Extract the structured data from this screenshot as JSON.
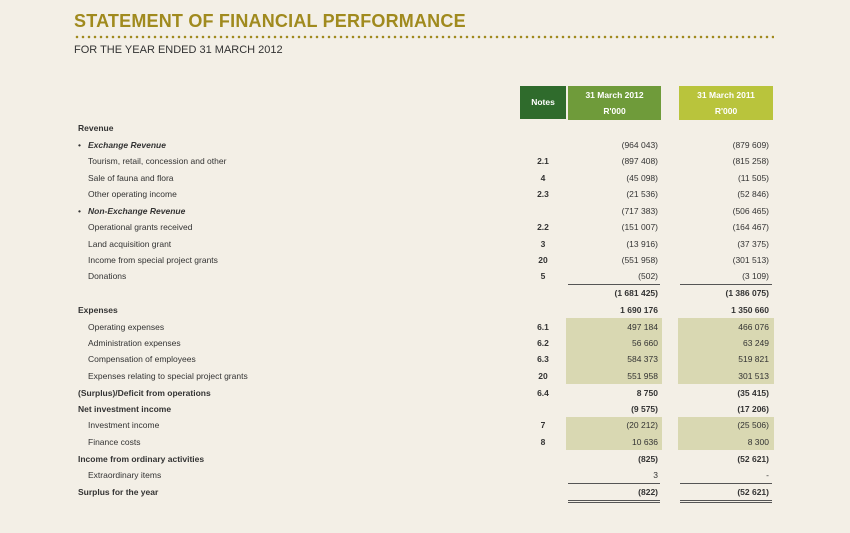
{
  "header": {
    "title": "STATEMENT OF FINANCIAL PERFORMANCE",
    "subtitle": "FOR THE YEAR ENDED 31 MARCH 2012"
  },
  "columns": {
    "notes": "Notes",
    "y2012_line1": "31 March 2012",
    "y2012_line2": "R'000",
    "y2011_line1": "31 March 2011",
    "y2011_line2": "R'000"
  },
  "rows": [
    {
      "label": "Revenue",
      "note": "",
      "v2012": "",
      "v2011": ""
    },
    {
      "label": "Exchange Revenue",
      "note": "",
      "v2012": "(964 043)",
      "v2011": "(879 609)"
    },
    {
      "label": "Tourism, retail, concession and other",
      "note": "2.1",
      "v2012": "(897 408)",
      "v2011": "(815 258)"
    },
    {
      "label": "Sale of fauna and flora",
      "note": "4",
      "v2012": "(45 098)",
      "v2011": "(11 505)"
    },
    {
      "label": "Other operating income",
      "note": "2.3",
      "v2012": "(21 536)",
      "v2011": "(52 846)"
    },
    {
      "label": "Non-Exchange Revenue",
      "note": "",
      "v2012": "(717 383)",
      "v2011": "(506 465)"
    },
    {
      "label": "Operational grants received",
      "note": "2.2",
      "v2012": "(151 007)",
      "v2011": "(164 467)"
    },
    {
      "label": "Land acquisition grant",
      "note": "3",
      "v2012": "(13 916)",
      "v2011": "(37 375)"
    },
    {
      "label": "Income from special project grants",
      "note": "20",
      "v2012": "(551 958)",
      "v2011": "(301 513)"
    },
    {
      "label": "Donations",
      "note": "5",
      "v2012": "(502)",
      "v2011": "(3 109)"
    },
    {
      "label": "",
      "note": "",
      "v2012": "(1 681 425)",
      "v2011": "(1 386 075)"
    },
    {
      "label": "Expenses",
      "note": "",
      "v2012": "1 690 176",
      "v2011": "1 350 660"
    },
    {
      "label": "Operating expenses",
      "note": "6.1",
      "v2012": "497 184",
      "v2011": "466 076"
    },
    {
      "label": "Administration expenses",
      "note": "6.2",
      "v2012": "56 660",
      "v2011": "63 249"
    },
    {
      "label": "Compensation of employees",
      "note": "6.3",
      "v2012": "584 373",
      "v2011": "519 821"
    },
    {
      "label": "Expenses relating to special project grants",
      "note": "20",
      "v2012": "551 958",
      "v2011": "301 513"
    },
    {
      "label": "(Surplus)/Deficit from operations",
      "note": "6.4",
      "v2012": "8 750",
      "v2011": "(35 415)"
    },
    {
      "label": "Net investment income",
      "note": "",
      "v2012": "(9 575)",
      "v2011": "(17 206)"
    },
    {
      "label": "Investment income",
      "note": "7",
      "v2012": "(20 212)",
      "v2011": "(25 506)"
    },
    {
      "label": "Finance costs",
      "note": "8",
      "v2012": "10 636",
      "v2011": "8 300"
    },
    {
      "label": "Income from ordinary activities",
      "note": "",
      "v2012": "(825)",
      "v2011": "(52 621)"
    },
    {
      "label": "Extraordinary items",
      "note": "",
      "v2012": "3",
      "v2011": "-"
    },
    {
      "label": "Surplus for the year",
      "note": "",
      "v2012": "(822)",
      "v2011": "(52 621)"
    }
  ]
}
